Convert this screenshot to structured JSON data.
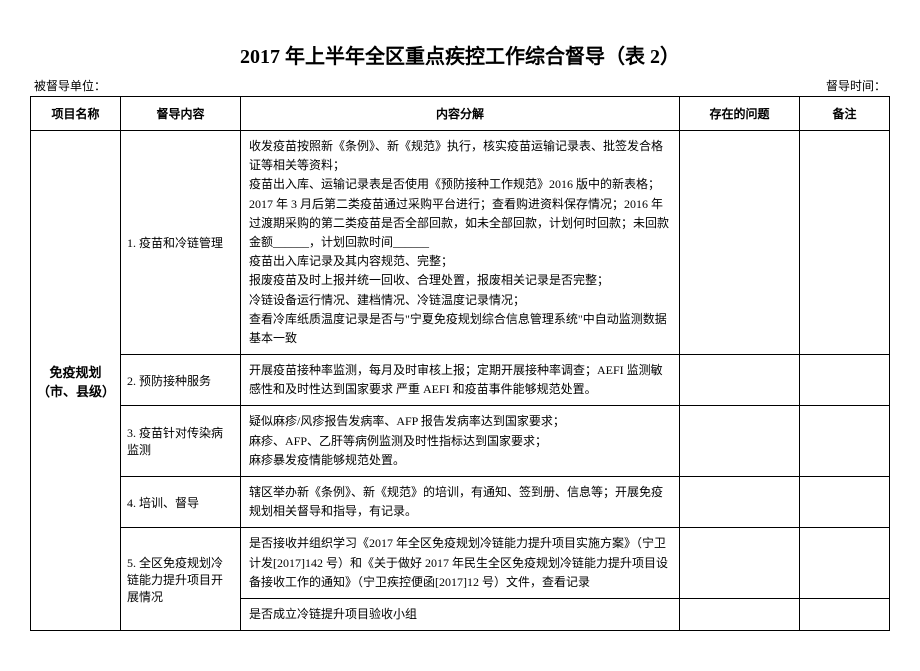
{
  "title": "2017 年上半年全区重点疾控工作综合督导（表 2）",
  "meta_left": "被督导单位：",
  "meta_right": "督导时间：",
  "headers": {
    "project": "项目名称",
    "content": "督导内容",
    "detail": "内容分解",
    "issues": "存在的问题",
    "notes": "备注"
  },
  "project_name": "免疫规划（市、县级）",
  "rows": [
    {
      "content": "1. 疫苗和冷链管理",
      "detail": "收发疫苗按照新《条例》、新《规范》执行，核实疫苗运输记录表、批签发合格证等相关等资料；\n疫苗出入库、运输记录表是否使用《预防接种工作规范》2016 版中的新表格；\n2017 年 3 月后第二类疫苗通过采购平台进行；查看购进资料保存情况；2016 年过渡期采购的第二类疫苗是否全部回款，如未全部回款，计划何时回款；未回款金额______，计划回款时间______\n疫苗出入库记录及其内容规范、完整；\n报废疫苗及时上报并统一回收、合理处置，报废相关记录是否完整；\n冷链设备运行情况、建档情况、冷链温度记录情况；\n查看冷库纸质温度记录是否与\"宁夏免疫规划综合信息管理系统\"中自动监测数据基本一致"
    },
    {
      "content": "2. 预防接种服务",
      "detail": "开展疫苗接种率监测，每月及时审核上报；定期开展接种率调查；AEFI 监测敏感性和及时性达到国家要求  严重 AEFI 和疫苗事件能够规范处置。"
    },
    {
      "content": "3. 疫苗针对传染病监测",
      "detail": "疑似麻疹/风疹报告发病率、AFP 报告发病率达到国家要求；\n麻疹、AFP、乙肝等病例监测及时性指标达到国家要求；\n麻疹暴发疫情能够规范处置。"
    },
    {
      "content": "4. 培训、督导",
      "detail": "辖区举办新《条例》、新《规范》的培训，有通知、签到册、信息等；开展免疫规划相关督导和指导，有记录。"
    },
    {
      "content": "5. 全区免疫规划冷链能力提升项目开展情况",
      "detail": "是否接收并组织学习《2017 年全区免疫规划冷链能力提升项目实施方案》（宁卫计发[2017]142 号）和《关于做好 2017 年民生全区免疫规划冷链能力提升项目设备接收工作的通知》（宁卫疾控便函[2017]12 号）文件，查看记录"
    },
    {
      "content": "",
      "detail": "是否成立冷链提升项目验收小组",
      "merge_above": true
    }
  ]
}
